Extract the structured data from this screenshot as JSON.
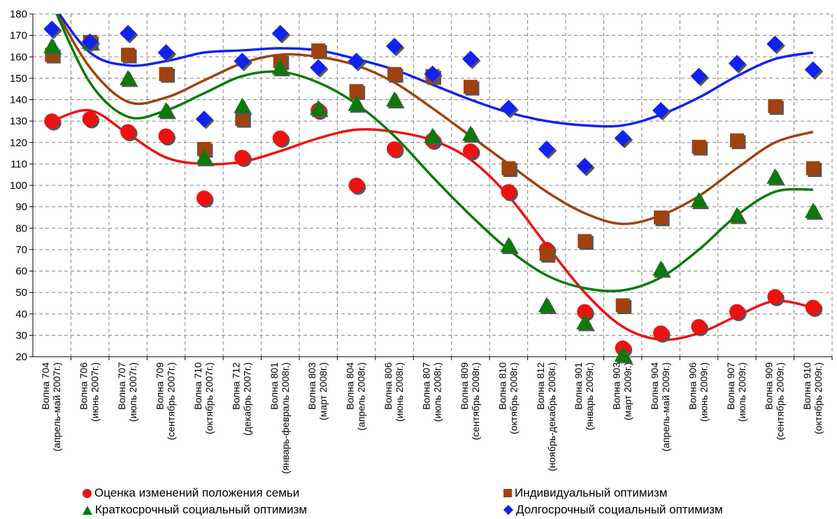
{
  "chart_data": {
    "type": "scatter",
    "title": "",
    "xlabel": "",
    "ylabel": "",
    "ylim": [
      20,
      180
    ],
    "yticks": [
      20,
      30,
      40,
      50,
      60,
      70,
      80,
      90,
      100,
      110,
      120,
      130,
      140,
      150,
      160,
      170,
      180
    ],
    "grid": true,
    "trendlines": "polynomial",
    "legend_position": "bottom",
    "categories": [
      "Волна 704 (апрель-май 2007г.)",
      "Волна 706 (июнь 2007г.)",
      "Волна 707 (июль 2007г.)",
      "Волна 709 (сентябрь 2007г.)",
      "Волна 710 (октябрь 2007г.)",
      "Волна 712 (декабрь 2007г.)",
      "Волна 801 (январь-февраль 2008г.)",
      "Волна 803 (март 2008г.)",
      "Волна 804 (апрель 2008г.)",
      "Волна 806 (июнь 2008г.)",
      "Волна 807 (июль 2008г.)",
      "Волна 809 (сентябрь 2008г.)",
      "Волна 810 (октябрь 2008г.)",
      "Волна 812 (ноябрь-декабрь 2008г.)",
      "Волна 901 (январь 2009г.)",
      "Волна 903 (март 2009г.)",
      "Волна 904 (апрель-май 2009г.)",
      "Волна 906 (июнь 2009г.)",
      "Волна 907 (июль 2009г.)",
      "Волна 909 (сентябрь 2009г.)",
      "Волна 910 (октябрь 2009г.)"
    ],
    "series": [
      {
        "name": "Оценка изменений положения семьи",
        "marker": "circle",
        "color": "#ee1111",
        "values": [
          130,
          131,
          125,
          123,
          94,
          113,
          122,
          135,
          100,
          117,
          121,
          116,
          97,
          70,
          41,
          24,
          31,
          34,
          41,
          48,
          43
        ],
        "trend": [
          130,
          135,
          124,
          113,
          110,
          111,
          116,
          122,
          126,
          125,
          121,
          112,
          95,
          72,
          50,
          34,
          28,
          31,
          39,
          46,
          43
        ]
      },
      {
        "name": "Индивидуальный оптимизм",
        "marker": "square",
        "color": "#a0420e",
        "values": [
          161,
          167,
          161,
          152,
          117,
          131,
          158,
          163,
          144,
          152,
          151,
          146,
          108,
          68,
          74,
          44,
          85,
          118,
          121,
          137,
          108
        ],
        "trend": [
          185,
          155,
          139,
          141,
          149,
          157,
          161,
          160,
          156,
          148,
          136,
          123,
          110,
          97,
          87,
          82,
          86,
          95,
          108,
          120,
          125
        ]
      },
      {
        "name": "Краткосрочный социальный оптимизм",
        "marker": "triangle",
        "color": "#0a7a0a",
        "values": [
          165,
          167,
          150,
          135,
          113,
          137,
          155,
          136,
          138,
          140,
          123,
          124,
          72,
          44,
          36,
          21,
          61,
          93,
          86,
          104,
          88
        ],
        "trend": [
          185,
          148,
          132,
          135,
          143,
          151,
          153,
          148,
          138,
          123,
          104,
          86,
          70,
          58,
          52,
          51,
          57,
          70,
          86,
          97,
          98
        ]
      },
      {
        "name": "Долгосрочный социальный оптимизм",
        "marker": "diamond",
        "color": "#1122ee",
        "values": [
          173,
          167,
          171,
          162,
          131,
          158,
          171,
          155,
          158,
          165,
          152,
          159,
          136,
          117,
          109,
          122,
          135,
          151,
          157,
          166,
          154
        ],
        "trend": [
          185,
          162,
          156,
          158,
          162,
          163,
          164,
          163,
          159,
          154,
          147,
          140,
          134,
          130,
          128,
          128,
          133,
          141,
          151,
          159,
          162
        ]
      }
    ]
  }
}
